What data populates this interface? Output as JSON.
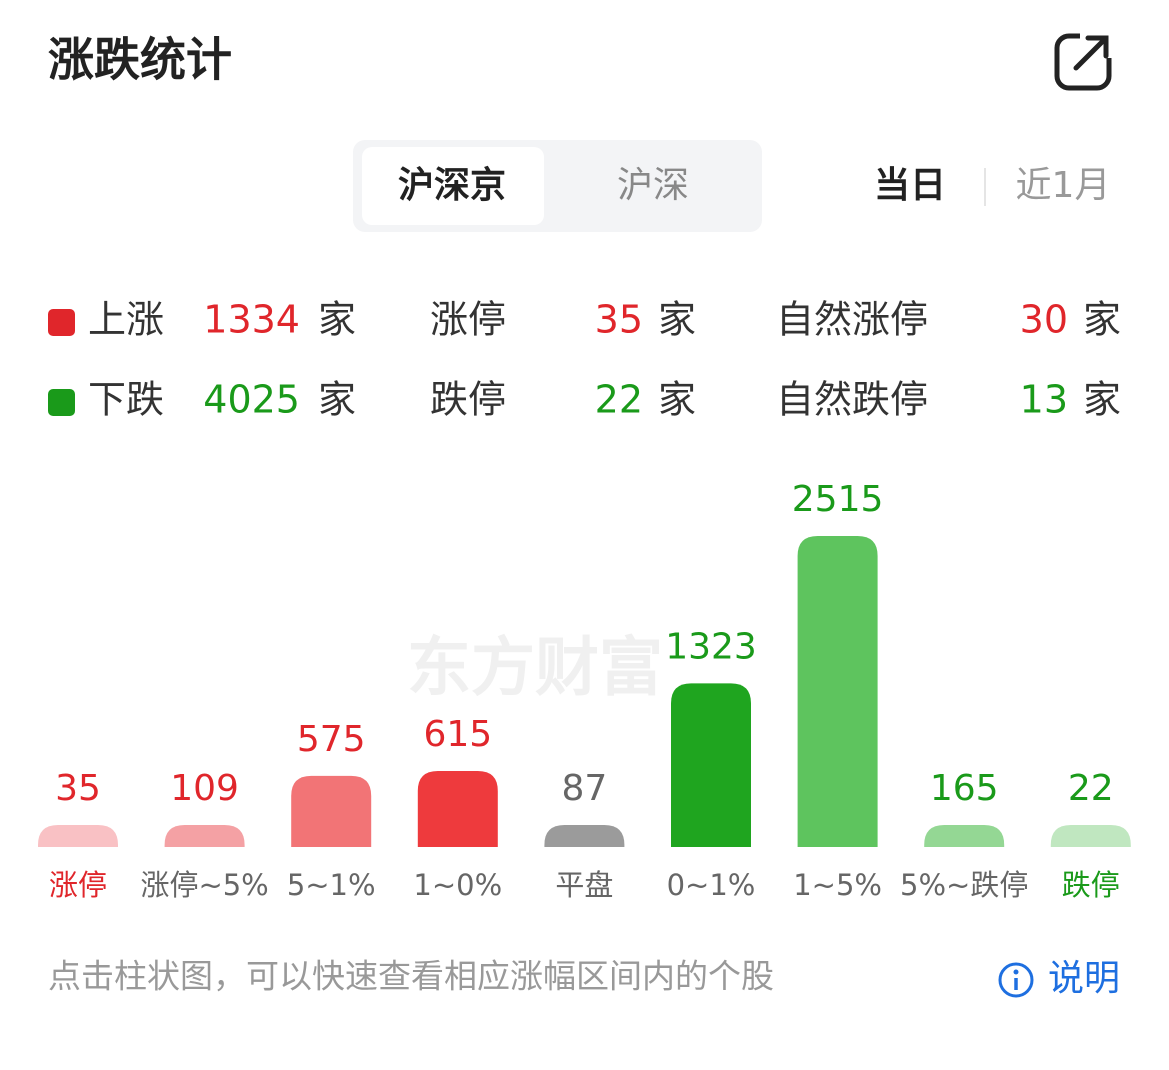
{
  "header": {
    "title": "涨跌统计"
  },
  "tabs": [
    "沪深京",
    "沪深"
  ],
  "periods": [
    "当日",
    "近1月"
  ],
  "stats": {
    "rows": [
      [
        {
          "label": "上涨",
          "value": 1334,
          "unit": "家"
        },
        {
          "label": "涨停",
          "value": 35,
          "unit": "家"
        },
        {
          "label": "自然涨停",
          "value": 30,
          "unit": "家"
        }
      ],
      [
        {
          "label": "下跌",
          "value": 4025,
          "unit": "家"
        },
        {
          "label": "跌停",
          "value": 22,
          "unit": "家"
        },
        {
          "label": "自然跌停",
          "value": 13,
          "unit": "家"
        }
      ]
    ],
    "row_colors": [
      "#e0262b",
      "#1a9a1a"
    ]
  },
  "watermark": "东方财富",
  "chart_data": {
    "type": "bar",
    "categories": [
      "涨停",
      "涨停~5%",
      "5~1%",
      "1~0%",
      "平盘",
      "0~1%",
      "1~5%",
      "5%~跌停",
      "跌停"
    ],
    "values": [
      35,
      109,
      575,
      615,
      87,
      1323,
      2515,
      165,
      22
    ],
    "colors": [
      "#f9c1c4",
      "#f4a1a4",
      "#f27476",
      "#ee3a3d",
      "#9b9b9b",
      "#1fa51f",
      "#5ec45e",
      "#94d794",
      "#c0e7c0"
    ],
    "value_label_colors": [
      "#e0262b",
      "#e0262b",
      "#e0262b",
      "#e0262b",
      "#666666",
      "#1a9a1a",
      "#1a9a1a",
      "#1a9a1a",
      "#1a9a1a"
    ],
    "category_label_colors": [
      "#e0262b",
      "#666666",
      "#666666",
      "#666666",
      "#666666",
      "#666666",
      "#666666",
      "#666666",
      "#1a9a1a"
    ]
  },
  "footer": {
    "hint": "点击柱状图，可以快速查看相应涨幅区间内的个股",
    "link": "说明"
  }
}
